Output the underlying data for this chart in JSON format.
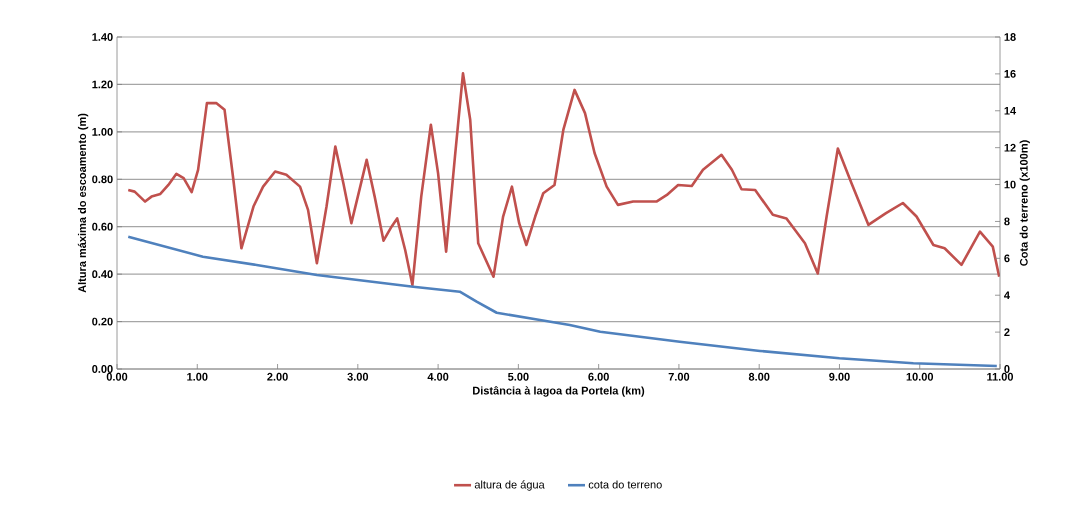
{
  "chart_data": {
    "type": "line",
    "xlabel": "Distância  à lagoa da Portela (km)",
    "ylabel": "Altura máxima do escoamento  (m)",
    "y2label": "Cota do terreno (x100m)",
    "xlim": [
      0,
      11
    ],
    "xticks": [
      {
        "value": 0,
        "label": "0.00"
      },
      {
        "value": 1,
        "label": "1.00"
      },
      {
        "value": 2,
        "label": "2.00"
      },
      {
        "value": 3,
        "label": "3.00"
      },
      {
        "value": 4,
        "label": "4.00"
      },
      {
        "value": 5,
        "label": "5.00"
      },
      {
        "value": 6,
        "label": "6.00"
      },
      {
        "value": 7,
        "label": "7.00"
      },
      {
        "value": 8,
        "label": "8.00"
      },
      {
        "value": 9,
        "label": "9.00"
      },
      {
        "value": 10,
        "label": "10.00"
      },
      {
        "value": 11,
        "label": "11.00"
      }
    ],
    "ylim": [
      0,
      1.4
    ],
    "yticks": [
      {
        "value": 0,
        "label": "0.00"
      },
      {
        "value": 0.2,
        "label": "0.20"
      },
      {
        "value": 0.4,
        "label": "0.40"
      },
      {
        "value": 0.6,
        "label": "0.60"
      },
      {
        "value": 0.8,
        "label": "0.80"
      },
      {
        "value": 1.0,
        "label": "1.00"
      },
      {
        "value": 1.2,
        "label": "1.20"
      },
      {
        "value": 1.4,
        "label": "1.40"
      }
    ],
    "y2lim": [
      0,
      18
    ],
    "y2ticks": [
      0,
      2,
      4,
      6,
      8,
      10,
      12,
      14,
      16,
      18
    ],
    "grid": "y",
    "legend": "bottom",
    "marker": "none",
    "line_style": "solid",
    "series": [
      {
        "name": "altura de água",
        "color": "#c0504d",
        "x": [
          0.14,
          0.22,
          0.35,
          0.43,
          0.54,
          0.64,
          0.74,
          0.83,
          0.93,
          1.01,
          1.12,
          1.24,
          1.34,
          1.45,
          1.55,
          1.7,
          1.82,
          1.97,
          2.11,
          2.28,
          2.38,
          2.49,
          2.61,
          2.72,
          2.82,
          2.92,
          3.03,
          3.11,
          3.21,
          3.32,
          3.42,
          3.49,
          3.59,
          3.68,
          3.79,
          3.91,
          4.0,
          4.1,
          4.21,
          4.31,
          4.4,
          4.5,
          4.69,
          4.81,
          4.92,
          5.01,
          5.1,
          5.21,
          5.31,
          5.45,
          5.56,
          5.7,
          5.83,
          5.95,
          6.1,
          6.24,
          6.43,
          6.72,
          6.85,
          6.99,
          7.16,
          7.3,
          7.53,
          7.66,
          7.78,
          7.95,
          8.17,
          8.34,
          8.57,
          8.73,
          8.84,
          8.98,
          9.15,
          9.36,
          9.58,
          9.79,
          9.96,
          10.17,
          10.31,
          10.52,
          10.75,
          10.91,
          10.99
        ],
        "values": [
          0.755,
          0.748,
          0.706,
          0.727,
          0.738,
          0.776,
          0.823,
          0.805,
          0.746,
          0.84,
          1.121,
          1.121,
          1.093,
          0.797,
          0.509,
          0.685,
          0.769,
          0.833,
          0.819,
          0.769,
          0.671,
          0.446,
          0.685,
          0.938,
          0.783,
          0.615,
          0.769,
          0.882,
          0.727,
          0.541,
          0.6,
          0.635,
          0.502,
          0.354,
          0.727,
          1.03,
          0.825,
          0.495,
          0.896,
          1.247,
          1.051,
          0.53,
          0.389,
          0.643,
          0.769,
          0.615,
          0.523,
          0.643,
          0.741,
          0.776,
          1.008,
          1.177,
          1.079,
          0.91,
          0.769,
          0.692,
          0.706,
          0.706,
          0.734,
          0.776,
          0.772,
          0.84,
          0.903,
          0.84,
          0.758,
          0.755,
          0.65,
          0.635,
          0.53,
          0.403,
          0.643,
          0.93,
          0.783,
          0.608,
          0.657,
          0.7,
          0.643,
          0.523,
          0.509,
          0.439,
          0.579,
          0.516,
          0.389
        ]
      },
      {
        "name": "cota do terreno",
        "color": "#4f81bd",
        "axis": "y2",
        "x": [
          0.14,
          1.07,
          1.74,
          2.49,
          3.69,
          4.27,
          4.48,
          4.73,
          5.27,
          5.64,
          6.02,
          7.01,
          8.01,
          9.0,
          9.92,
          10.96
        ],
        "values": [
          7.17,
          6.09,
          5.64,
          5.1,
          4.46,
          4.19,
          3.65,
          3.05,
          2.66,
          2.39,
          2.02,
          1.48,
          0.98,
          0.58,
          0.31,
          0.16
        ]
      }
    ]
  }
}
